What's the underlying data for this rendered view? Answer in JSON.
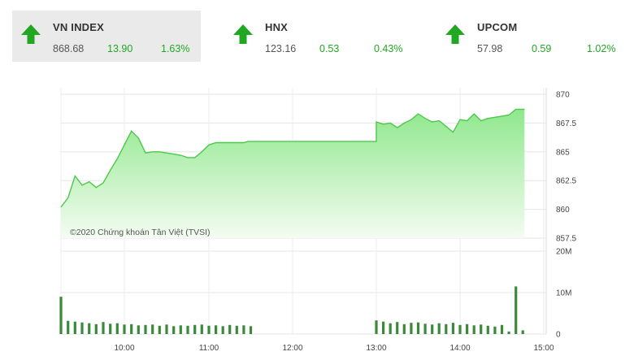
{
  "tickers": [
    {
      "name": "VN INDEX",
      "value": "868.68",
      "change": "13.90",
      "percent": "1.63%",
      "direction": "up"
    },
    {
      "name": "HNX",
      "value": "123.16",
      "change": "0.53",
      "percent": "0.43%",
      "direction": "up"
    },
    {
      "name": "UPCOM",
      "value": "57.98",
      "change": "0.59",
      "percent": "1.02%",
      "direction": "up"
    }
  ],
  "colors": {
    "up": "#22a722",
    "area_top": "#8fe88c",
    "area_bottom": "#f4fcf2",
    "line": "#4cc94a",
    "volume": "#3a8a3a"
  },
  "chart_data": [
    {
      "type": "area",
      "title": "",
      "copyright": "©2020 Chứng khoán Tân Việt (TVSI)",
      "x": [
        "09:15",
        "09:20",
        "09:25",
        "09:30",
        "09:35",
        "09:40",
        "09:45",
        "09:50",
        "09:55",
        "10:00",
        "10:05",
        "10:10",
        "10:15",
        "10:20",
        "10:25",
        "10:30",
        "10:35",
        "10:40",
        "10:45",
        "10:50",
        "10:55",
        "11:00",
        "11:05",
        "11:10",
        "11:15",
        "11:20",
        "11:25",
        "11:30",
        "13:00",
        "13:05",
        "13:10",
        "13:15",
        "13:20",
        "13:25",
        "13:30",
        "13:35",
        "13:40",
        "13:45",
        "13:50",
        "13:55",
        "14:00",
        "14:05",
        "14:10",
        "14:15",
        "14:20",
        "14:25",
        "14:30",
        "14:35",
        "14:40",
        "14:45"
      ],
      "values": [
        860.2,
        861.0,
        862.9,
        862.1,
        862.4,
        861.9,
        862.3,
        863.4,
        864.4,
        865.6,
        866.8,
        866.2,
        864.9,
        865.0,
        865.0,
        864.9,
        864.8,
        864.7,
        864.5,
        864.5,
        865.0,
        865.6,
        865.8,
        865.8,
        865.8,
        865.8,
        865.8,
        865.9,
        867.6,
        867.4,
        867.5,
        867.1,
        867.5,
        867.8,
        868.3,
        867.9,
        867.6,
        867.7,
        867.2,
        866.7,
        867.8,
        867.7,
        868.3,
        867.7,
        867.9,
        868.0,
        868.1,
        868.2,
        868.7,
        868.7
      ],
      "yticks": [
        "870",
        "867.5",
        "865",
        "862.5",
        "860",
        "857.5"
      ],
      "ylim": [
        857.5,
        870
      ],
      "grid": true
    },
    {
      "type": "bar",
      "title": "",
      "x": [
        "09:15",
        "09:20",
        "09:25",
        "09:30",
        "09:35",
        "09:40",
        "09:45",
        "09:50",
        "09:55",
        "10:00",
        "10:05",
        "10:10",
        "10:15",
        "10:20",
        "10:25",
        "10:30",
        "10:35",
        "10:40",
        "10:45",
        "10:50",
        "10:55",
        "11:00",
        "11:05",
        "11:10",
        "11:15",
        "11:20",
        "11:25",
        "11:30",
        "13:00",
        "13:05",
        "13:10",
        "13:15",
        "13:20",
        "13:25",
        "13:30",
        "13:35",
        "13:40",
        "13:45",
        "13:50",
        "13:55",
        "14:00",
        "14:05",
        "14:10",
        "14:15",
        "14:20",
        "14:25",
        "14:30",
        "14:35",
        "14:40",
        "14:45"
      ],
      "values": [
        9.0,
        3.2,
        3.0,
        2.8,
        2.6,
        2.4,
        2.9,
        2.5,
        2.6,
        2.3,
        2.4,
        2.1,
        2.2,
        2.3,
        2.0,
        2.3,
        1.9,
        2.1,
        2.0,
        2.2,
        2.3,
        2.0,
        2.1,
        1.9,
        2.2,
        2.0,
        2.1,
        1.9,
        3.3,
        3.0,
        2.6,
        2.9,
        2.4,
        2.7,
        2.8,
        2.5,
        2.3,
        2.6,
        2.4,
        2.7,
        2.2,
        2.4,
        2.1,
        2.3,
        2.0,
        1.8,
        2.2,
        0.6,
        11.5,
        0.9
      ],
      "yticks": [
        "20M",
        "10M",
        "0"
      ],
      "ylim": [
        0,
        20
      ],
      "xticks": [
        "10:00",
        "11:00",
        "12:00",
        "13:00",
        "14:00",
        "15:00"
      ],
      "grid": true
    }
  ]
}
